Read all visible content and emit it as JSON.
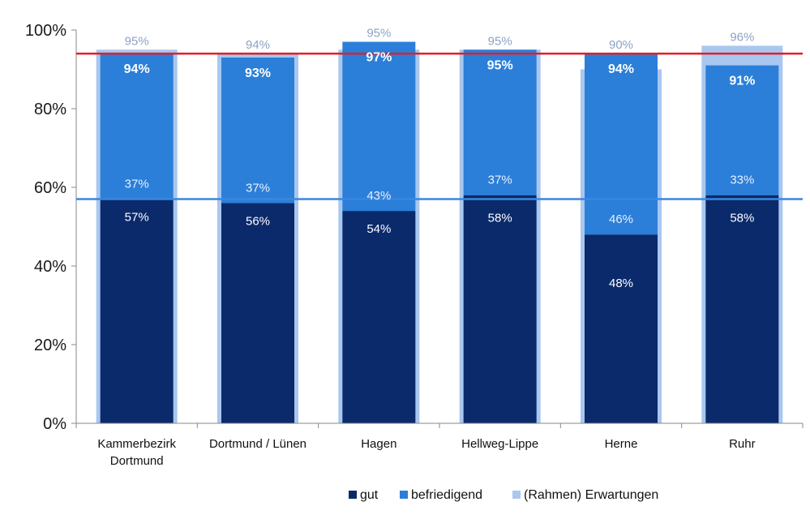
{
  "chart_data": {
    "type": "bar",
    "title": "",
    "xlabel": "",
    "ylabel": "",
    "ylim": [
      0,
      100
    ],
    "yticks": [
      "0%",
      "20%",
      "40%",
      "60%",
      "80%",
      "100%"
    ],
    "categories": [
      [
        "Kammerbezirk",
        "Dortmund"
      ],
      [
        "Dortmund / Lünen"
      ],
      [
        "Hagen"
      ],
      [
        "Hellweg-Lippe"
      ],
      [
        "Herne"
      ],
      [
        "Ruhr"
      ]
    ],
    "series": [
      {
        "name": "gut",
        "color": "#0a2a6b",
        "values": [
          57,
          56,
          54,
          58,
          48,
          58
        ],
        "labels": [
          "57%",
          "56%",
          "54%",
          "58%",
          "48%",
          "58%"
        ]
      },
      {
        "name": "befriedigend",
        "color": "#2b7fd8",
        "values": [
          37,
          37,
          43,
          37,
          46,
          33
        ],
        "labels": [
          "37%",
          "37%",
          "43%",
          "37%",
          "46%",
          "33%"
        ]
      },
      {
        "name": "(Rahmen) Erwartungen",
        "color": "#a9c7ef",
        "values": [
          95,
          94,
          95,
          95,
          90,
          96
        ],
        "labels": [
          "95%",
          "94%",
          "95%",
          "95%",
          "90%",
          "96%"
        ]
      }
    ],
    "total_labels": [
      "94%",
      "93%",
      "97%",
      "95%",
      "94%",
      "91%"
    ],
    "reference_lines": [
      {
        "value": 94,
        "color": "#e31e24"
      },
      {
        "value": 57,
        "color": "#3a87e0"
      }
    ],
    "legend_position": "bottom-right",
    "grid": false
  }
}
